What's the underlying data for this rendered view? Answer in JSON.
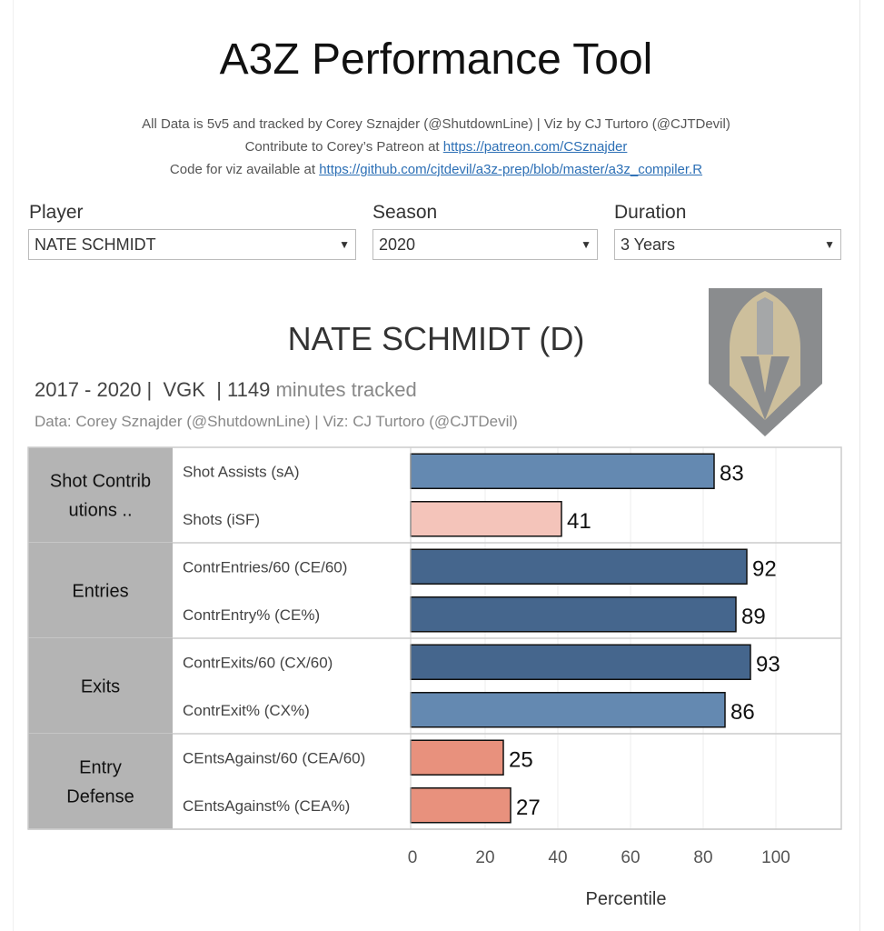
{
  "header": {
    "title": "A3Z Performance Tool",
    "line1": "All Data is 5v5 and tracked by Corey Sznajder (@ShutdownLine) | Viz by CJ Turtoro (@CJTDevil)",
    "line2_text": "Contribute to Corey’s Patreon at ",
    "line2_link": "https://patreon.com/CSznajder",
    "line3_text": "Code for viz available at ",
    "line3_link": "https://github.com/cjtdevil/a3z-prep/blob/master/a3z_compiler.R"
  },
  "filters": {
    "player": {
      "label": "Player",
      "value": "NATE SCHMIDT"
    },
    "season": {
      "label": "Season",
      "value": "2020"
    },
    "duration": {
      "label": "Duration",
      "value": "3 Years"
    }
  },
  "player": {
    "title": "NATE SCHMIDT (D)",
    "years": "2017 - 2020",
    "team": "VGK",
    "minutes": "1149",
    "minutes_label": "minutes tracked",
    "credit": "Data: Corey Sznajder (@ShutdownLine) | Viz: CJ Turtoro (@CJTDevil)"
  },
  "chart_data": {
    "type": "bar",
    "orientation": "horizontal",
    "xlabel": "Percentile",
    "xlim": [
      0,
      115
    ],
    "xticks": [
      0,
      20,
      40,
      60,
      80,
      100
    ],
    "grid": true,
    "groups": [
      {
        "name": "Shot Contrib utions ..",
        "lines": [
          "Shot Contrib",
          "utions        .."
        ],
        "items": [
          {
            "label": "Shot Assists (sA)",
            "value": 83,
            "color": "#6489b1"
          },
          {
            "label": "Shots (iSF)",
            "value": 41,
            "color": "#f4c4ba"
          }
        ]
      },
      {
        "name": "Entries",
        "lines": [
          "Entries"
        ],
        "items": [
          {
            "label": "ContrEntries/60 (CE/60)",
            "value": 92,
            "color": "#45668d"
          },
          {
            "label": "ContrEntry% (CE%)",
            "value": 89,
            "color": "#45668d"
          }
        ]
      },
      {
        "name": "Exits",
        "lines": [
          "Exits"
        ],
        "items": [
          {
            "label": "ContrExits/60 (CX/60)",
            "value": 93,
            "color": "#45668d"
          },
          {
            "label": "ContrExit% (CX%)",
            "value": 86,
            "color": "#6489b1"
          }
        ]
      },
      {
        "name": "Entry Defense",
        "lines": [
          "Entry",
          "Defense"
        ],
        "items": [
          {
            "label": "CEntsAgainst/60 (CEA/60)",
            "value": 25,
            "color": "#e8917d"
          },
          {
            "label": "CEntsAgainst% (CEA%)",
            "value": 27,
            "color": "#e8917d"
          }
        ]
      }
    ]
  }
}
